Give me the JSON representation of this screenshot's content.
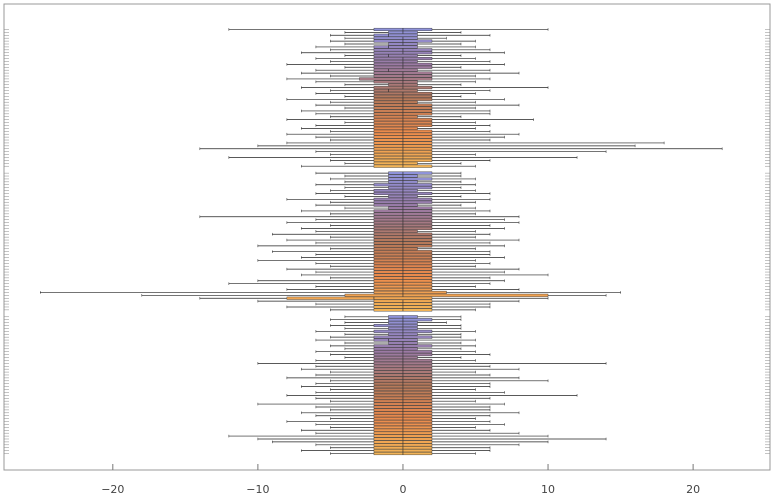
{
  "chart_data": {
    "type": "boxwhisker",
    "orientation": "horizontal",
    "xlim": [
      -27.5,
      25.3
    ],
    "xticks": [
      {
        "value": -20,
        "label": "−20"
      },
      {
        "value": -10,
        "label": "−10"
      },
      0,
      10,
      20
    ],
    "palette": [
      "#8f93db",
      "#9a7aa6",
      "#b4785a",
      "#ec8a4c",
      "#f2b457"
    ],
    "series": [
      {
        "values": [
          [
            -12,
            -2,
            0,
            2,
            10
          ],
          [
            -4,
            -1,
            0,
            1,
            4
          ],
          [
            -5,
            -2,
            -1,
            1,
            6
          ],
          [
            -4,
            -2,
            0,
            1,
            3
          ],
          [
            -5,
            -2,
            0,
            2,
            5
          ],
          [
            -4,
            -1,
            0,
            1,
            4
          ],
          [
            -6,
            -2,
            -1,
            1,
            5
          ],
          [
            -5,
            -2,
            0,
            2,
            6
          ],
          [
            -7,
            -2,
            0,
            2,
            7
          ],
          [
            -4,
            -2,
            -1,
            1,
            4
          ],
          [
            -6,
            -2,
            0,
            2,
            5
          ],
          [
            -5,
            -2,
            0,
            1,
            6
          ],
          [
            -8,
            -2,
            0,
            2,
            7
          ],
          [
            -4,
            -2,
            0,
            2,
            4
          ],
          [
            -6,
            -2,
            -1,
            1,
            6
          ],
          [
            -7,
            -2,
            0,
            2,
            8
          ],
          [
            -5,
            -2,
            0,
            2,
            5
          ],
          [
            -8,
            -3,
            0,
            2,
            6
          ],
          [
            -6,
            -2,
            0,
            1,
            5
          ],
          [
            -4,
            -1,
            0,
            1,
            4
          ],
          [
            -7,
            -2,
            0,
            2,
            10
          ],
          [
            -5,
            -2,
            -1,
            1,
            6
          ],
          [
            -6,
            -2,
            0,
            2,
            5
          ],
          [
            -4,
            -2,
            0,
            2,
            4
          ],
          [
            -8,
            -2,
            0,
            2,
            7
          ],
          [
            -5,
            -2,
            0,
            1,
            5
          ],
          [
            -6,
            -2,
            0,
            2,
            8
          ],
          [
            -4,
            -2,
            0,
            2,
            5
          ],
          [
            -7,
            -2,
            0,
            2,
            6
          ],
          [
            -6,
            -2,
            0,
            2,
            6
          ],
          [
            -5,
            -2,
            0,
            1,
            4
          ],
          [
            -8,
            -2,
            0,
            2,
            9
          ],
          [
            -4,
            -2,
            0,
            2,
            5
          ],
          [
            -6,
            -2,
            0,
            2,
            6
          ],
          [
            -7,
            -2,
            0,
            1,
            5
          ],
          [
            -5,
            -2,
            0,
            2,
            6
          ],
          [
            -8,
            -2,
            0,
            2,
            8
          ],
          [
            -6,
            -2,
            0,
            2,
            7
          ],
          [
            -5,
            -2,
            0,
            2,
            6
          ],
          [
            -8,
            -2,
            0,
            2,
            18
          ],
          [
            -10,
            -2,
            0,
            2,
            16
          ],
          [
            -14,
            -2,
            0,
            2,
            22
          ],
          [
            -6,
            -2,
            0,
            2,
            14
          ],
          [
            -5,
            -2,
            0,
            2,
            5
          ],
          [
            -12,
            -2,
            0,
            2,
            12
          ],
          [
            -5,
            -2,
            0,
            2,
            6
          ],
          [
            -4,
            -2,
            0,
            1,
            4
          ],
          [
            -7,
            -2,
            0,
            2,
            5
          ]
        ]
      },
      {
        "values": [
          [
            -6,
            -1,
            0,
            2,
            4
          ],
          [
            -4,
            -1,
            0,
            1,
            4
          ],
          [
            -5,
            -1,
            0,
            2,
            5
          ],
          [
            -4,
            -1,
            0,
            1,
            4
          ],
          [
            -6,
            -2,
            0,
            2,
            5
          ],
          [
            -4,
            -1,
            0,
            2,
            4
          ],
          [
            -5,
            -2,
            0,
            1,
            5
          ],
          [
            -6,
            -2,
            0,
            2,
            6
          ],
          [
            -4,
            -1,
            0,
            1,
            4
          ],
          [
            -8,
            -2,
            0,
            2,
            6
          ],
          [
            -5,
            -2,
            0,
            2,
            5
          ],
          [
            -6,
            -2,
            0,
            1,
            4
          ],
          [
            -4,
            -1,
            0,
            2,
            5
          ],
          [
            -7,
            -2,
            0,
            2,
            6
          ],
          [
            -5,
            -2,
            0,
            2,
            5
          ],
          [
            -14,
            -2,
            0,
            2,
            8
          ],
          [
            -6,
            -2,
            0,
            2,
            7
          ],
          [
            -8,
            -2,
            0,
            2,
            8
          ],
          [
            -5,
            -2,
            0,
            2,
            6
          ],
          [
            -7,
            -2,
            0,
            2,
            7
          ],
          [
            -6,
            -2,
            0,
            1,
            5
          ],
          [
            -9,
            -2,
            0,
            2,
            6
          ],
          [
            -5,
            -2,
            0,
            2,
            5
          ],
          [
            -8,
            -2,
            0,
            2,
            8
          ],
          [
            -6,
            -2,
            0,
            2,
            6
          ],
          [
            -10,
            -2,
            0,
            2,
            7
          ],
          [
            -5,
            -2,
            0,
            1,
            5
          ],
          [
            -9,
            -2,
            0,
            2,
            6
          ],
          [
            -6,
            -2,
            0,
            2,
            6
          ],
          [
            -7,
            -2,
            0,
            2,
            7
          ],
          [
            -10,
            -2,
            0,
            2,
            5
          ],
          [
            -6,
            -2,
            0,
            2,
            6
          ],
          [
            -5,
            -2,
            0,
            2,
            5
          ],
          [
            -8,
            -2,
            0,
            2,
            8
          ],
          [
            -6,
            -2,
            0,
            2,
            7
          ],
          [
            -7,
            -2,
            0,
            2,
            10
          ],
          [
            -5,
            -2,
            0,
            2,
            6
          ],
          [
            -10,
            -2,
            0,
            2,
            7
          ],
          [
            -12,
            -2,
            0,
            2,
            6
          ],
          [
            -6,
            -2,
            0,
            2,
            5
          ],
          [
            -8,
            -2,
            0,
            2,
            8
          ],
          [
            -25,
            -2,
            0,
            3,
            15
          ],
          [
            -18,
            -4,
            0,
            10,
            14
          ],
          [
            -14,
            -8,
            -2,
            2,
            10
          ],
          [
            -10,
            -2,
            0,
            2,
            8
          ],
          [
            -6,
            -2,
            0,
            2,
            6
          ],
          [
            -8,
            -2,
            0,
            2,
            6
          ],
          [
            -5,
            -2,
            0,
            2,
            5
          ]
        ]
      },
      {
        "values": [
          [
            -4,
            -1,
            0,
            1,
            4
          ],
          [
            -5,
            -1,
            0,
            2,
            4
          ],
          [
            -4,
            -1,
            0,
            1,
            3
          ],
          [
            -5,
            -2,
            0,
            1,
            4
          ],
          [
            -4,
            -1,
            0,
            1,
            4
          ],
          [
            -6,
            -2,
            0,
            2,
            5
          ],
          [
            -4,
            -1,
            0,
            1,
            4
          ],
          [
            -5,
            -2,
            0,
            2,
            4
          ],
          [
            -6,
            -2,
            -1,
            1,
            5
          ],
          [
            -4,
            -1,
            0,
            1,
            4
          ],
          [
            -5,
            -2,
            0,
            2,
            5
          ],
          [
            -4,
            -2,
            0,
            1,
            4
          ],
          [
            -6,
            -2,
            0,
            2,
            5
          ],
          [
            -5,
            -2,
            0,
            2,
            6
          ],
          [
            -4,
            -2,
            0,
            1,
            4
          ],
          [
            -6,
            -2,
            0,
            2,
            5
          ],
          [
            -10,
            -2,
            0,
            2,
            14
          ],
          [
            -6,
            -2,
            0,
            2,
            6
          ],
          [
            -7,
            -2,
            0,
            2,
            8
          ],
          [
            -5,
            -2,
            0,
            2,
            5
          ],
          [
            -6,
            -2,
            0,
            2,
            6
          ],
          [
            -8,
            -2,
            0,
            2,
            8
          ],
          [
            -5,
            -2,
            0,
            2,
            10
          ],
          [
            -6,
            -2,
            0,
            2,
            6
          ],
          [
            -7,
            -2,
            0,
            2,
            6
          ],
          [
            -5,
            -2,
            0,
            2,
            5
          ],
          [
            -6,
            -2,
            0,
            2,
            7
          ],
          [
            -8,
            -2,
            0,
            2,
            12
          ],
          [
            -6,
            -2,
            0,
            2,
            6
          ],
          [
            -5,
            -2,
            0,
            2,
            5
          ],
          [
            -10,
            -2,
            0,
            2,
            7
          ],
          [
            -6,
            -2,
            0,
            2,
            6
          ],
          [
            -5,
            -2,
            0,
            2,
            6
          ],
          [
            -7,
            -2,
            0,
            2,
            8
          ],
          [
            -6,
            -2,
            0,
            2,
            6
          ],
          [
            -5,
            -2,
            0,
            2,
            5
          ],
          [
            -8,
            -2,
            0,
            2,
            6
          ],
          [
            -6,
            -2,
            0,
            2,
            7
          ],
          [
            -5,
            -2,
            0,
            2,
            5
          ],
          [
            -7,
            -2,
            0,
            2,
            6
          ],
          [
            -6,
            -2,
            0,
            2,
            8
          ],
          [
            -12,
            -2,
            0,
            2,
            10
          ],
          [
            -10,
            -2,
            0,
            2,
            14
          ],
          [
            -9,
            -2,
            0,
            2,
            10
          ],
          [
            -6,
            -2,
            0,
            2,
            8
          ],
          [
            -5,
            -2,
            0,
            2,
            6
          ],
          [
            -7,
            -2,
            0,
            2,
            6
          ],
          [
            -5,
            -2,
            0,
            2,
            5
          ]
        ]
      }
    ]
  }
}
